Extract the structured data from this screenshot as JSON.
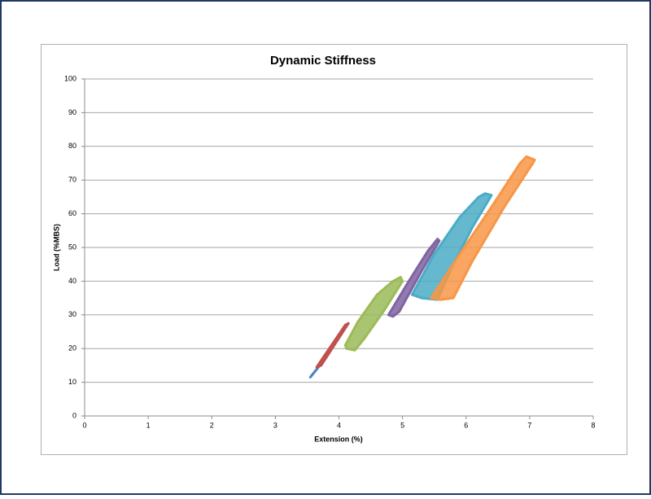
{
  "chart_data": {
    "type": "line",
    "title": "Dynamic Stiffness",
    "x_label": "Extension (%)",
    "y_label": "Load (%MBS)",
    "xlim": [
      0,
      8
    ],
    "xticks": [
      0,
      1,
      2,
      3,
      4,
      5,
      6,
      7,
      8
    ],
    "ylim": [
      0,
      100
    ],
    "yticks": [
      0,
      10,
      20,
      30,
      40,
      50,
      60,
      70,
      80,
      90,
      100
    ],
    "grid": true,
    "series": [
      {
        "color": "#4f81bd",
        "x": [
          3.55,
          3.7,
          3.72,
          3.57,
          3.55
        ],
        "values": [
          11.5,
          15,
          15.5,
          12,
          11.5
        ]
      },
      {
        "color": "#c0504d",
        "x": [
          3.65,
          4.1,
          4.15,
          3.72,
          3.65
        ],
        "values": [
          14.5,
          27,
          27.5,
          15,
          14.5
        ]
      },
      {
        "color": "#9bbb59",
        "x": [
          4.1,
          4.3,
          4.6,
          4.85,
          4.97,
          5.0,
          4.7,
          4.4,
          4.25,
          4.12,
          4.1
        ],
        "values": [
          21,
          28,
          36,
          40,
          41.2,
          40,
          31,
          23,
          19.5,
          20,
          21
        ]
      },
      {
        "color": "#8064a2",
        "x": [
          4.78,
          5.1,
          5.4,
          5.55,
          5.58,
          5.3,
          4.95,
          4.85,
          4.78
        ],
        "values": [
          30,
          40,
          49,
          52.5,
          52,
          43,
          31,
          29.5,
          30
        ]
      },
      {
        "color": "#4bacc6",
        "x": [
          5.15,
          5.5,
          5.9,
          6.2,
          6.3,
          6.4,
          6.1,
          5.8,
          5.55,
          5.3,
          5.15
        ],
        "values": [
          36,
          48,
          59,
          65,
          66,
          65.5,
          56,
          45,
          34.5,
          35,
          36
        ]
      },
      {
        "color": "#f79646",
        "x": [
          5.45,
          5.9,
          6.4,
          6.85,
          6.95,
          7.08,
          7.05,
          6.6,
          6.1,
          5.8,
          5.6,
          5.45
        ],
        "values": [
          35,
          48,
          62,
          75,
          77,
          76,
          75,
          62,
          46,
          35,
          34.5,
          35
        ]
      }
    ]
  }
}
